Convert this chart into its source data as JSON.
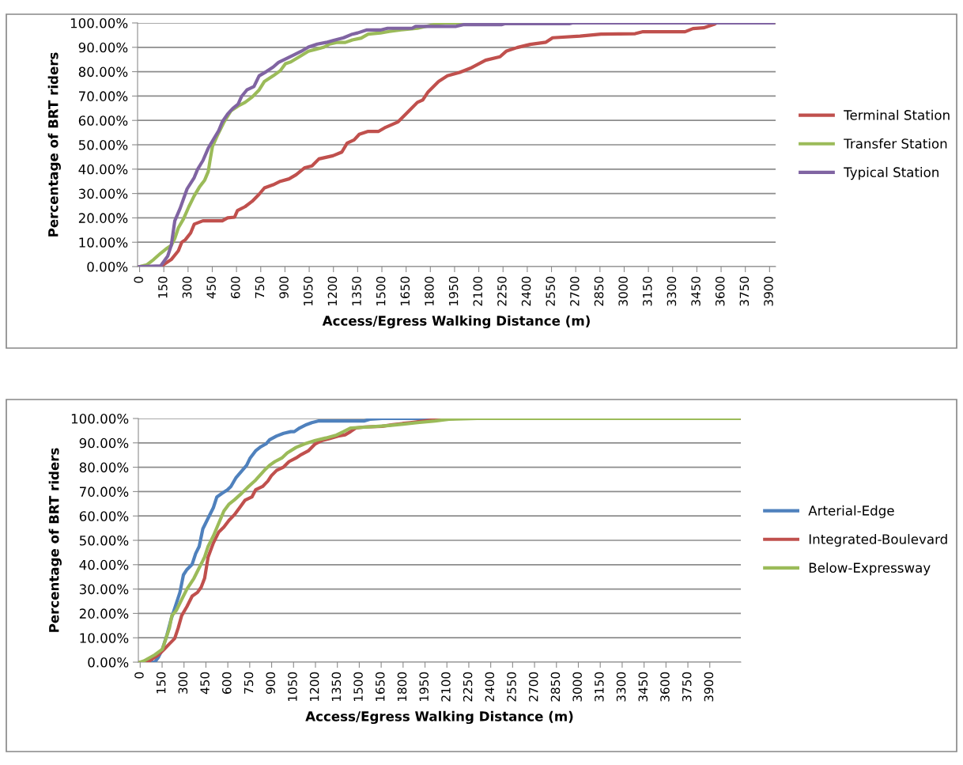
{
  "chart_data": [
    {
      "type": "line",
      "xlabel": "Access/Egress Walking Distance (m)",
      "ylabel": "Percentage of BRT riders",
      "legend": "right",
      "grid": "y",
      "marker": "none",
      "line_style": "solid",
      "xlim": [
        -12.5,
        3937.5
      ],
      "xticks": [
        0,
        150,
        300,
        450,
        600,
        750,
        900,
        1050,
        1200,
        1350,
        1500,
        1650,
        1800,
        1950,
        2100,
        2250,
        2400,
        2550,
        2700,
        2850,
        3000,
        3150,
        3300,
        3450,
        3600,
        3750,
        3900
      ],
      "ylim": [
        0,
        100
      ],
      "yticks": [
        {
          "value": 0,
          "label": "0.00%"
        },
        {
          "value": 10,
          "label": "10.00%"
        },
        {
          "value": 20,
          "label": "20.00%"
        },
        {
          "value": 30,
          "label": "30.00%"
        },
        {
          "value": 40,
          "label": "40.00%"
        },
        {
          "value": 50,
          "label": "50.00%"
        },
        {
          "value": 60,
          "label": "60.00%"
        },
        {
          "value": 70,
          "label": "70.00%"
        },
        {
          "value": 80,
          "label": "80.00%"
        },
        {
          "value": 90,
          "label": "90.00%"
        },
        {
          "value": 100,
          "label": "100.00%"
        }
      ],
      "series": [
        {
          "name": "Terminal Station",
          "color": "#c0504d",
          "x": [
            0,
            130,
            196,
            240,
            261,
            283,
            316,
            338,
            392,
            512,
            545,
            588,
            606,
            653,
            697,
            740,
            773,
            827,
            871,
            925,
            969,
            1023,
            1067,
            1110,
            1197,
            1252,
            1285,
            1328,
            1360,
            1415,
            1480,
            1524,
            1600,
            1677,
            1720,
            1753,
            1786,
            1851,
            1906,
            1982,
            2047,
            2142,
            2231,
            2272,
            2337,
            2418,
            2516,
            2557,
            2727,
            2857,
            3068,
            3117,
            3377,
            3426,
            3491,
            3556,
            3572,
            3925
          ],
          "values": [
            0,
            0,
            2.9,
            6.5,
            10,
            11,
            13.8,
            17.4,
            18.8,
            18.8,
            20,
            20.3,
            23,
            24.6,
            26.8,
            29.7,
            32.3,
            33.6,
            35,
            36,
            37.7,
            40.6,
            41.3,
            44.2,
            45.5,
            47,
            50.7,
            52,
            54.3,
            55.5,
            55.5,
            57.2,
            59.4,
            64.5,
            67.4,
            68.4,
            71.7,
            76,
            78.3,
            79.7,
            81.4,
            84.7,
            86.1,
            88.5,
            89.9,
            91.2,
            92.1,
            93.9,
            94.6,
            95.4,
            95.6,
            96.4,
            96.4,
            97.7,
            98,
            99.4,
            100,
            100
          ]
        },
        {
          "name": "Transfer Station",
          "color": "#9bbb59",
          "x": [
            0,
            44,
            87,
            131,
            163,
            196,
            218,
            240,
            272,
            305,
            338,
            370,
            403,
            425,
            436,
            451,
            480,
            523,
            566,
            610,
            653,
            697,
            740,
            773,
            827,
            871,
            903,
            936,
            991,
            1045,
            1089,
            1143,
            1176,
            1219,
            1274,
            1317,
            1372,
            1415,
            1491,
            1546,
            1611,
            1720,
            1786,
            1851,
            1895,
            3925
          ],
          "values": [
            0,
            0.7,
            2.9,
            5.5,
            7.2,
            8.7,
            11.6,
            15.9,
            19.6,
            24.6,
            29,
            32.6,
            35.5,
            39,
            43.5,
            49.3,
            53.6,
            59.4,
            64,
            65.9,
            67.4,
            69.6,
            72.5,
            76,
            78.3,
            80.4,
            83.3,
            84,
            86.2,
            88.4,
            89.1,
            90.1,
            91.3,
            92,
            92,
            93,
            93.8,
            95.4,
            95.9,
            96.5,
            97.1,
            97.8,
            98.8,
            99.7,
            100,
            100
          ]
        },
        {
          "name": "Typical Station",
          "color": "#8064a2",
          "x": [
            0,
            131,
            174,
            196,
            218,
            251,
            294,
            338,
            359,
            392,
            425,
            457,
            490,
            512,
            545,
            577,
            610,
            632,
            664,
            708,
            740,
            784,
            827,
            860,
            903,
            958,
            1002,
            1045,
            1100,
            1154,
            1197,
            1263,
            1317,
            1350,
            1404,
            1491,
            1535,
            1687,
            1709,
            1960,
            2003,
            2240,
            2260,
            2660,
            2680,
            3925
          ],
          "values": [
            0,
            0.3,
            4.3,
            8.7,
            18.8,
            23.9,
            31.9,
            36.5,
            39.9,
            43.5,
            48.6,
            52.2,
            55.8,
            59.4,
            62.6,
            64.9,
            66.7,
            69.9,
            72.5,
            73.9,
            78.3,
            80,
            81.9,
            83.8,
            85.2,
            87,
            88.4,
            90.1,
            91.3,
            92,
            92.8,
            93.9,
            95.4,
            95.9,
            97.1,
            97.1,
            97.8,
            97.8,
            98.6,
            98.6,
            99.3,
            99.3,
            99.7,
            99.7,
            100,
            100
          ]
        }
      ]
    },
    {
      "type": "line",
      "xlabel": "Access/Egress Walking Distance (m)",
      "ylabel": "Percentage of BRT riders",
      "legend": "right",
      "grid": "y",
      "marker": "none",
      "line_style": "solid",
      "xlim": [
        -12.5,
        4112.5
      ],
      "xticks": [
        0,
        150,
        300,
        450,
        600,
        750,
        900,
        1050,
        1200,
        1350,
        1500,
        1650,
        1800,
        1950,
        2100,
        2250,
        2400,
        2550,
        2700,
        2850,
        3000,
        3150,
        3300,
        3450,
        3600,
        3750,
        3900
      ],
      "ylim": [
        0,
        100
      ],
      "yticks": [
        {
          "value": 0,
          "label": "0.00%"
        },
        {
          "value": 10,
          "label": "10.00%"
        },
        {
          "value": 20,
          "label": "20.00%"
        },
        {
          "value": 30,
          "label": "30.00%"
        },
        {
          "value": 40,
          "label": "40.00%"
        },
        {
          "value": 50,
          "label": "50.00%"
        },
        {
          "value": 60,
          "label": "60.00%"
        },
        {
          "value": 70,
          "label": "70.00%"
        },
        {
          "value": 80,
          "label": "80.00%"
        },
        {
          "value": 90,
          "label": "90.00%"
        },
        {
          "value": 100,
          "label": "100.00%"
        }
      ],
      "series": [
        {
          "name": "Arterial-Edge",
          "color": "#4f81bd",
          "x": [
            0,
            100,
            125,
            152,
            183,
            212,
            248,
            272,
            296,
            320,
            356,
            380,
            404,
            429,
            465,
            501,
            525,
            561,
            597,
            621,
            657,
            693,
            729,
            753,
            790,
            826,
            862,
            886,
            934,
            982,
            1031,
            1055,
            1091,
            1139,
            1175,
            1223,
            1536,
            1572,
            1657,
            4100
          ],
          "values": [
            0,
            0,
            2,
            5.3,
            11.1,
            17.7,
            24.2,
            28.6,
            35.8,
            38,
            40.2,
            44.6,
            47.5,
            54.7,
            59.1,
            63.4,
            67.8,
            69.3,
            70.7,
            72.1,
            75.8,
            78.3,
            80.8,
            83.8,
            86.7,
            88.4,
            89.6,
            91.3,
            92.8,
            93.9,
            94.6,
            94.6,
            96.1,
            97.5,
            98.3,
            99,
            99,
            99.7,
            100,
            100
          ]
        },
        {
          "name": "Integrated-Boulevard",
          "color": "#c0504d",
          "x": [
            0,
            50,
            75,
            125,
            164,
            200,
            236,
            260,
            284,
            320,
            356,
            392,
            417,
            441,
            465,
            501,
            537,
            573,
            609,
            645,
            681,
            717,
            765,
            790,
            838,
            874,
            898,
            934,
            982,
            1019,
            1067,
            1103,
            1151,
            1199,
            1247,
            1295,
            1355,
            1403,
            1440,
            1476,
            1536,
            1657,
            1729,
            1849,
            1946,
            2042,
            2162,
            4100
          ],
          "values": [
            0,
            0,
            1,
            3,
            5.3,
            7.5,
            9.7,
            14,
            19.1,
            22.8,
            27.1,
            28.6,
            30.7,
            34.4,
            43.1,
            48.9,
            53.3,
            55.4,
            58.3,
            60.5,
            63.4,
            66.4,
            67.8,
            70.7,
            72.1,
            74.3,
            76.5,
            78.7,
            80.1,
            82.3,
            83.8,
            85.2,
            86.7,
            89.6,
            91,
            91.7,
            92.8,
            93.3,
            94.6,
            96.1,
            96.5,
            96.8,
            97.5,
            98.3,
            99,
            99.7,
            100,
            100
          ]
        },
        {
          "name": "Below-Expressway",
          "color": "#9bbb59",
          "x": [
            0,
            25,
            100,
            152,
            176,
            200,
            217,
            248,
            284,
            320,
            368,
            404,
            441,
            465,
            501,
            537,
            573,
            609,
            645,
            693,
            742,
            790,
            850,
            886,
            922,
            970,
            1007,
            1067,
            1127,
            1199,
            1271,
            1344,
            1392,
            1440,
            1560,
            1705,
            1898,
            2018,
            2114,
            2307,
            4100
          ],
          "values": [
            0,
            0.5,
            3,
            5.3,
            9.7,
            14,
            19.1,
            21.3,
            25.7,
            30,
            34.4,
            38.7,
            43.1,
            47.5,
            51.8,
            56.9,
            62,
            64.9,
            66.6,
            69.2,
            72.1,
            74.7,
            78.7,
            80.8,
            82.3,
            83.8,
            85.9,
            88.1,
            89.6,
            91,
            92,
            93.2,
            94.6,
            96.1,
            96.5,
            97.1,
            98.3,
            99,
            99.7,
            100,
            100
          ]
        }
      ]
    }
  ]
}
